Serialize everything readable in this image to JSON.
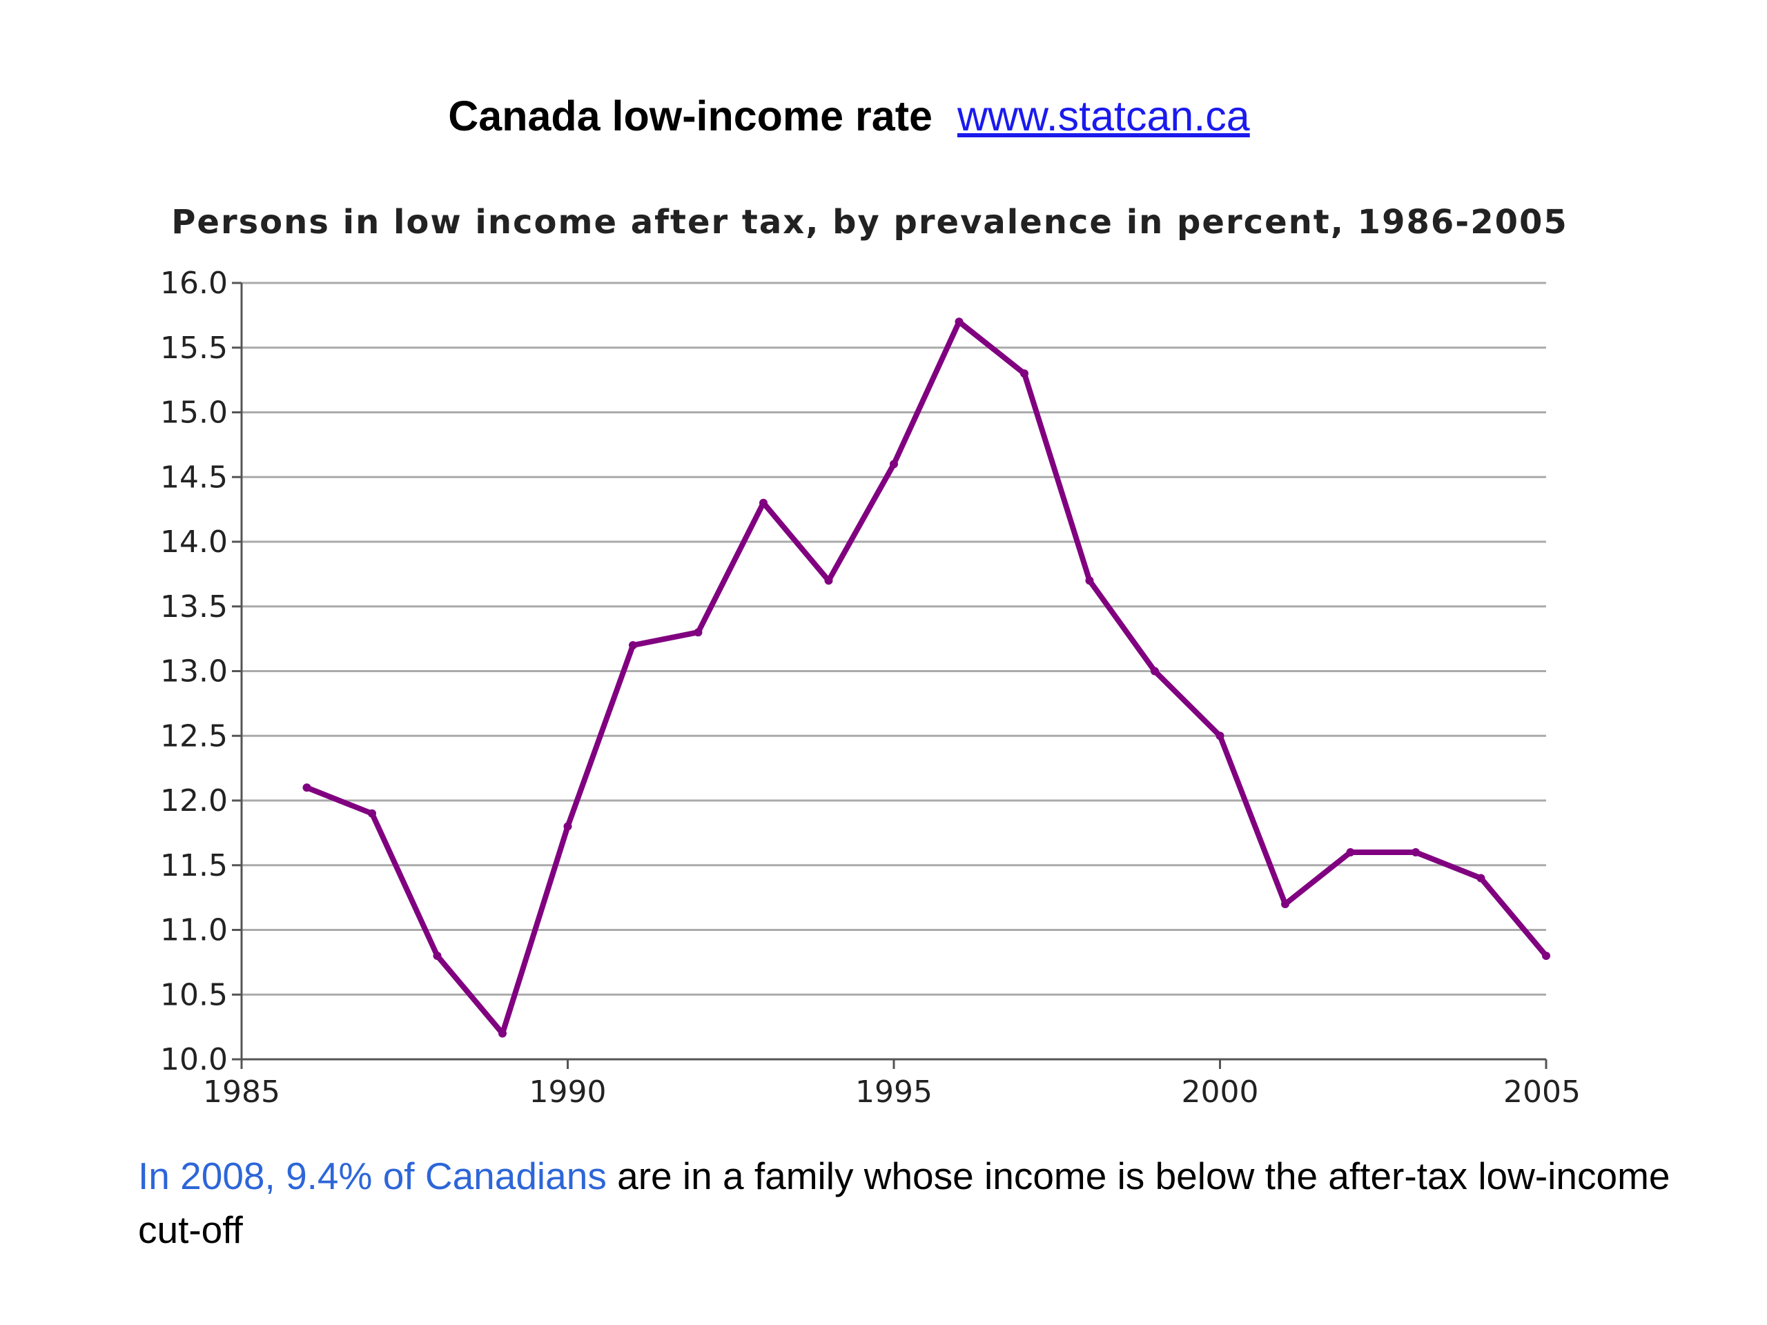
{
  "slide": {
    "title": "Canada low-income rate",
    "link": "www.statcan.ca",
    "caption_highlight": "In 2008, 9.4% of Canadians",
    "caption_rest": " are in a family whose income is below the after-tax low-income cut-off"
  },
  "colors": {
    "line": "#800080",
    "grid": "#aaaaaa",
    "highlight": "#2d66d8",
    "link": "#1a1aee"
  },
  "chart_data": {
    "type": "line",
    "title": "Persons in low income after tax, by prevalence in percent, 1986-2005",
    "xlabel": "",
    "ylabel": "",
    "xlim": [
      1985,
      2005
    ],
    "ylim": [
      10.0,
      16.0
    ],
    "x_ticks": [
      "1985",
      "1990",
      "1995",
      "2000",
      "2005"
    ],
    "y_ticks": [
      "10.0",
      "10.5",
      "11.0",
      "11.5",
      "12.0",
      "12.5",
      "13.0",
      "13.5",
      "14.0",
      "14.5",
      "15.0",
      "15.5",
      "16.0"
    ],
    "grid": true,
    "series": [
      {
        "x": [
          1986,
          1987,
          1988,
          1989,
          1990,
          1991,
          1992,
          1993,
          1994,
          1995,
          1996,
          1997,
          1998,
          1999,
          2000,
          2001,
          2002,
          2003,
          2004,
          2005
        ],
        "values": [
          12.1,
          11.9,
          10.8,
          10.2,
          11.8,
          13.2,
          13.3,
          14.3,
          13.7,
          14.6,
          15.7,
          15.3,
          13.7,
          13.0,
          12.5,
          11.2,
          11.6,
          11.6,
          11.4,
          10.8
        ]
      }
    ]
  }
}
